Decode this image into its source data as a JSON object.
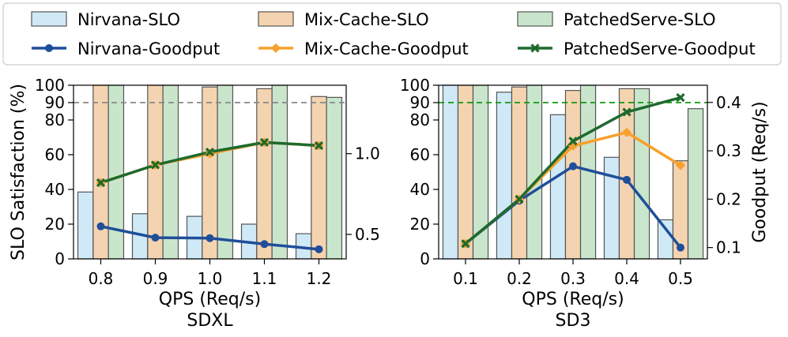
{
  "legend": {
    "entries": [
      {
        "label": "Nirvana-SLO",
        "kind": "bar",
        "series": "nirvana"
      },
      {
        "label": "Mix-Cache-SLO",
        "kind": "bar",
        "series": "mixcache"
      },
      {
        "label": "PatchedServe-SLO",
        "kind": "bar",
        "series": "patched"
      },
      {
        "label": "Nirvana-Goodput",
        "kind": "line",
        "series": "nirvana"
      },
      {
        "label": "Mix-Cache-Goodput",
        "kind": "line",
        "series": "mixcache"
      },
      {
        "label": "PatchedServe-Goodput",
        "kind": "line",
        "series": "patched"
      }
    ]
  },
  "colors": {
    "nirvana_bar": "#cfe9f7",
    "mixcache_bar": "#f4d4b0",
    "patched_bar": "#c9e6cc",
    "nirvana_line": "#1f4e9a",
    "mixcache_line": "#f7a02a",
    "patched_line": "#1e6a2e",
    "bar_edge": "#555555",
    "ref_sdxl": "#888888",
    "ref_sd3": "#119911"
  },
  "chart_data": [
    {
      "type": "bar+line",
      "title": "SDXL",
      "xlabel": "QPS (Req/s)",
      "ylabel_left": "SLO Satisfaction (%)",
      "ylabel_right": "",
      "categories": [
        "0.8",
        "0.9",
        "1.0",
        "1.1",
        "1.2"
      ],
      "ylim_left": [
        0,
        100
      ],
      "yticks_left": [
        "0",
        "20",
        "40",
        "60",
        "80",
        "90",
        "100"
      ],
      "ylim_right": [
        0.3486,
        1.4236
      ],
      "yticks_right": [
        "0.5",
        "1.0"
      ],
      "reference_line": {
        "axis": "left",
        "value": 90,
        "style": "dashed"
      },
      "bar_series": [
        {
          "name": "Nirvana-SLO",
          "values": [
            38.5,
            26,
            24.5,
            20,
            14.5
          ]
        },
        {
          "name": "Mix-Cache-SLO",
          "values": [
            100,
            100,
            99,
            98,
            93.5
          ]
        },
        {
          "name": "PatchedServe-SLO",
          "values": [
            100,
            100,
            100,
            100,
            93
          ]
        }
      ],
      "line_series": [
        {
          "name": "Nirvana-Goodput",
          "values": [
            0.55,
            0.48,
            0.477,
            0.44,
            0.408
          ]
        },
        {
          "name": "Mix-Cache-Goodput",
          "values": [
            0.82,
            0.93,
            1.0,
            1.07,
            1.05
          ]
        },
        {
          "name": "PatchedServe-Goodput",
          "values": [
            0.82,
            0.93,
            1.01,
            1.07,
            1.05
          ]
        }
      ]
    },
    {
      "type": "bar+line",
      "title": "SD3",
      "xlabel": "QPS (Req/s)",
      "ylabel_left": "",
      "ylabel_right": "Goodput (Req/s)",
      "categories": [
        "0.1",
        "0.2",
        "0.3",
        "0.4",
        "0.5"
      ],
      "ylim_left": [
        0,
        100
      ],
      "yticks_left": [
        "0",
        "20",
        "40",
        "60",
        "80",
        "90",
        "100"
      ],
      "ylim_right": [
        0.0766,
        0.4355
      ],
      "yticks_right": [
        "0.1",
        "0.2",
        "0.3",
        "0.4"
      ],
      "reference_line": {
        "axis": "left",
        "value": 90,
        "style": "dashed"
      },
      "bar_series": [
        {
          "name": "Nirvana-SLO",
          "values": [
            100,
            96,
            83,
            58.5,
            22.5
          ]
        },
        {
          "name": "Mix-Cache-SLO",
          "values": [
            100,
            99,
            97,
            98,
            56.5
          ]
        },
        {
          "name": "PatchedServe-SLO",
          "values": [
            100,
            100,
            100,
            98,
            86.5
          ]
        }
      ],
      "line_series": [
        {
          "name": "Nirvana-Goodput",
          "values": [
            0.108,
            0.197,
            0.268,
            0.24,
            0.1
          ]
        },
        {
          "name": "Mix-Cache-Goodput",
          "values": [
            0.108,
            0.2,
            0.31,
            0.338,
            0.27
          ]
        },
        {
          "name": "PatchedServe-Goodput",
          "values": [
            0.108,
            0.2,
            0.32,
            0.38,
            0.41
          ]
        }
      ]
    }
  ]
}
